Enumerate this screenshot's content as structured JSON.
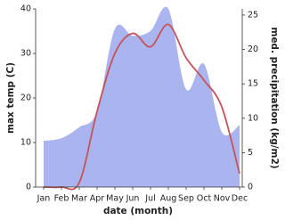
{
  "chart_data": {
    "type": "area-line",
    "xlabel": "date (month)",
    "ylabel": "max temp (C)",
    "y2label": "med. precipitation (kg/m2)",
    "categories": [
      "Jan",
      "Feb",
      "Mar",
      "Apr",
      "May",
      "Jun",
      "Jul",
      "Aug",
      "Sep",
      "Oct",
      "Nov",
      "Dec"
    ],
    "series": [
      {
        "name": "max temp",
        "color": "#c8525a",
        "values": [
          0,
          0,
          1,
          17,
          30,
          34.5,
          31.5,
          36.5,
          29,
          24,
          18,
          3
        ]
      },
      {
        "name": "med. precipitation",
        "color": "#aab4ee",
        "axis": "y2",
        "values": [
          6.7,
          7.1,
          8.7,
          11,
          23,
          22,
          22.7,
          25.9,
          14.2,
          17.9,
          8,
          9
        ]
      }
    ],
    "ylim": [
      0,
      40
    ],
    "yticks": [
      0,
      10,
      20,
      30,
      40
    ],
    "y2lim": [
      0,
      25.9
    ],
    "y2ticks": [
      0,
      5,
      10,
      15,
      20,
      25
    ]
  }
}
